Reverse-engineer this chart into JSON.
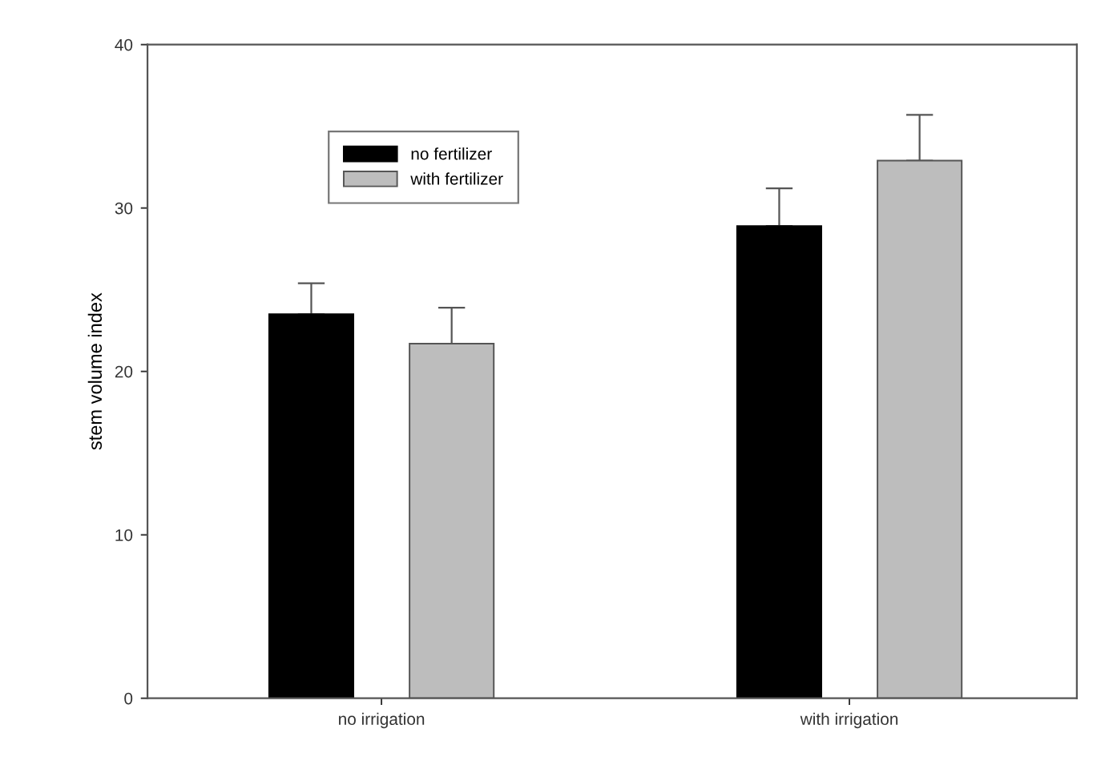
{
  "chart_data": {
    "type": "bar",
    "ylabel": "stem volume index",
    "categories": [
      "no irrigation",
      "with irrigation"
    ],
    "series": [
      {
        "name": "no fertilizer",
        "color": "#000000",
        "values": [
          23.5,
          28.9
        ],
        "errors": [
          [
            23.5,
            25.4
          ],
          [
            28.9,
            31.2
          ]
        ]
      },
      {
        "name": "with fertilizer",
        "color": "#bdbdbd",
        "values": [
          21.7,
          32.9
        ],
        "errors": [
          [
            21.7,
            23.9
          ],
          [
            32.9,
            35.7
          ]
        ]
      }
    ],
    "ylim": [
      0,
      40
    ],
    "yticks": [
      0,
      10,
      20,
      30,
      40
    ],
    "grid": false,
    "legend": "top left"
  }
}
